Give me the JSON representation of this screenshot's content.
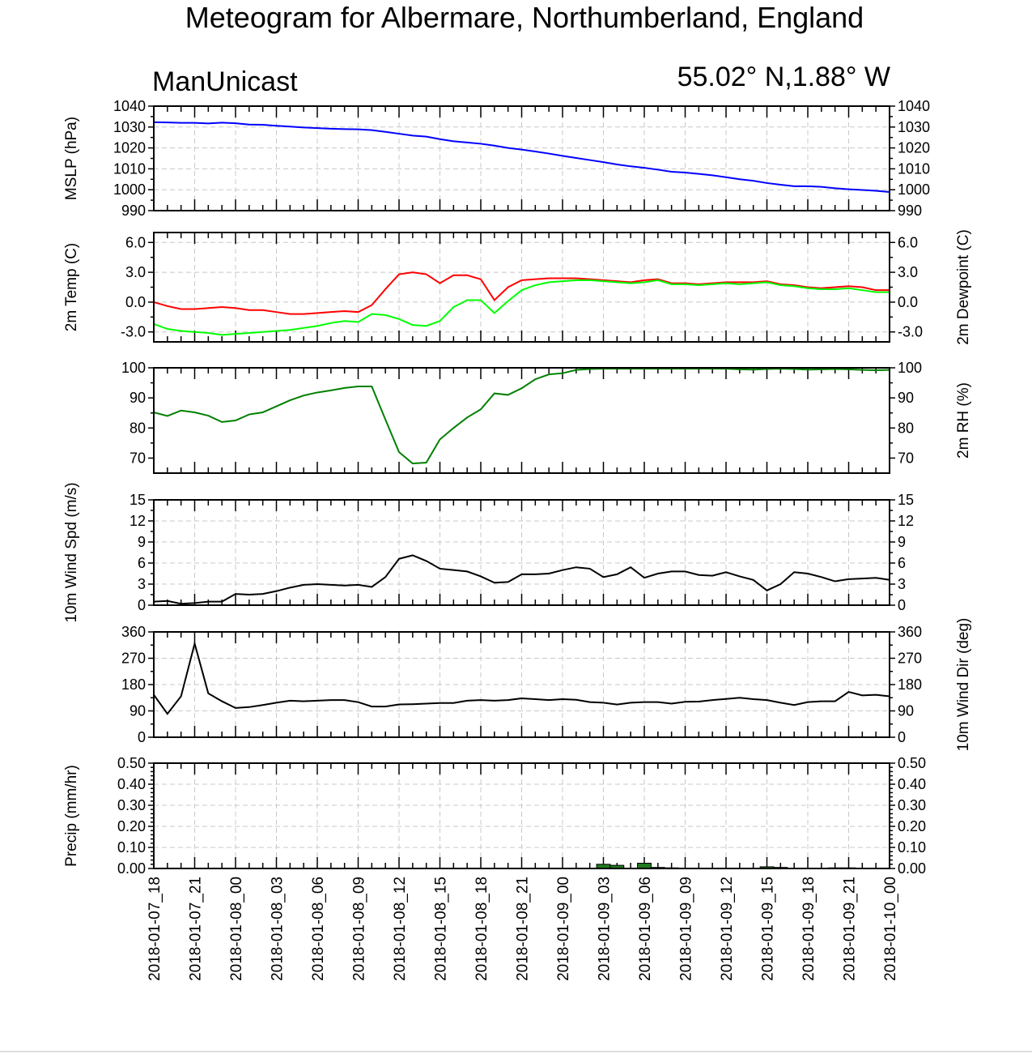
{
  "title": "Meteogram for Albermare, Northumberland, England",
  "left_subtitle": "ManUnicast",
  "right_subtitle": "55.02° N,1.88° W",
  "time_labels": [
    "2018-01-07_18",
    "2018-01-07_21",
    "2018-01-08_00",
    "2018-01-08_03",
    "2018-01-08_06",
    "2018-01-08_09",
    "2018-01-08_12",
    "2018-01-08_15",
    "2018-01-08_18",
    "2018-01-08_21",
    "2018-01-09_00",
    "2018-01-09_03",
    "2018-01-09_06",
    "2018-01-09_09",
    "2018-01-09_12",
    "2018-01-09_15",
    "2018-01-09_18",
    "2018-01-09_21",
    "2018-01-10_00"
  ],
  "colors": {
    "mslp": "#0000ff",
    "temp": "#ff0000",
    "dewpoint": "#00ff00",
    "rh": "#008000",
    "wind": "#000000",
    "precip_fill": "#1f7a1f",
    "grid": "#c8c8c8"
  },
  "chart_data": [
    {
      "type": "line",
      "left_label": "MSLP (hPa)",
      "right_label": "",
      "ylim": [
        990,
        1040
      ],
      "yticks": [
        "990",
        "1000",
        "1010",
        "1020",
        "1030",
        "1040"
      ],
      "ytick_values": [
        990,
        1000,
        1010,
        1020,
        1030,
        1040
      ],
      "grid": true,
      "x_hours": [
        0,
        1,
        2,
        3,
        4,
        5,
        6,
        7,
        8,
        9,
        10,
        11,
        12,
        13,
        14,
        15,
        16,
        17,
        18,
        19,
        20,
        21,
        22,
        23,
        24,
        25,
        26,
        27,
        28,
        29,
        30,
        31,
        32,
        33,
        34,
        35,
        36,
        37,
        38,
        39,
        40,
        41,
        42,
        43,
        44,
        45,
        46,
        47,
        48,
        49,
        50,
        51,
        52,
        53,
        54
      ],
      "series": [
        {
          "color_key": "mslp",
          "values": [
            1032.3,
            1032.2,
            1032.0,
            1032.0,
            1031.7,
            1032.1,
            1031.8,
            1031.2,
            1031.1,
            1030.6,
            1030.2,
            1029.8,
            1029.5,
            1029.2,
            1029.0,
            1028.9,
            1028.5,
            1027.7,
            1026.8,
            1025.9,
            1025.4,
            1024.2,
            1023.2,
            1022.6,
            1022.0,
            1021.1,
            1020.0,
            1019.2,
            1018.3,
            1017.3,
            1016.2,
            1015.2,
            1014.2,
            1013.2,
            1012.1,
            1011.2,
            1010.5,
            1009.6,
            1008.6,
            1008.2,
            1007.6,
            1006.9,
            1006.0,
            1005.0,
            1004.3,
            1003.2,
            1002.4,
            1001.7,
            1001.7,
            1001.4,
            1000.7,
            1000.2,
            999.9,
            999.5,
            998.9
          ]
        }
      ]
    },
    {
      "type": "line",
      "left_label": "2m Temp (C)",
      "right_label": "2m Dewpoint (C)",
      "ylim": [
        -4,
        7
      ],
      "yticks": [
        "-3.0",
        "0.0",
        "3.0",
        "6.0"
      ],
      "ytick_values": [
        -3,
        0,
        3,
        6
      ],
      "grid": true,
      "x_hours": [
        0,
        1,
        2,
        3,
        4,
        5,
        6,
        7,
        8,
        9,
        10,
        11,
        12,
        13,
        14,
        15,
        16,
        17,
        18,
        19,
        20,
        21,
        22,
        23,
        24,
        25,
        26,
        27,
        28,
        29,
        30,
        31,
        32,
        33,
        34,
        35,
        36,
        37,
        38,
        39,
        40,
        41,
        42,
        43,
        44,
        45,
        46,
        47,
        48,
        49,
        50,
        51,
        52,
        53,
        54
      ],
      "series": [
        {
          "color_key": "temp",
          "values": [
            0.0,
            -0.4,
            -0.7,
            -0.7,
            -0.6,
            -0.5,
            -0.6,
            -0.8,
            -0.8,
            -1.0,
            -1.2,
            -1.2,
            -1.1,
            -1.0,
            -0.9,
            -1.0,
            -0.3,
            1.3,
            2.8,
            3.0,
            2.8,
            1.9,
            2.7,
            2.7,
            2.3,
            0.2,
            1.5,
            2.2,
            2.3,
            2.4,
            2.4,
            2.4,
            2.3,
            2.2,
            2.1,
            2.0,
            2.2,
            2.3,
            1.9,
            1.9,
            1.8,
            1.9,
            2.0,
            2.0,
            2.0,
            2.1,
            1.8,
            1.7,
            1.5,
            1.4,
            1.5,
            1.6,
            1.5,
            1.2,
            1.2
          ]
        },
        {
          "color_key": "dewpoint",
          "values": [
            -2.2,
            -2.7,
            -2.9,
            -3.0,
            -3.1,
            -3.3,
            -3.2,
            -3.1,
            -3.0,
            -2.9,
            -2.8,
            -2.6,
            -2.4,
            -2.1,
            -1.9,
            -2.0,
            -1.2,
            -1.3,
            -1.7,
            -2.3,
            -2.4,
            -1.9,
            -0.5,
            0.2,
            0.2,
            -1.1,
            0.1,
            1.2,
            1.7,
            2.0,
            2.1,
            2.2,
            2.2,
            2.1,
            2.0,
            1.9,
            2.0,
            2.2,
            1.8,
            1.8,
            1.7,
            1.8,
            1.9,
            1.8,
            1.9,
            2.0,
            1.7,
            1.6,
            1.4,
            1.3,
            1.3,
            1.4,
            1.2,
            1.0,
            1.0
          ]
        }
      ]
    },
    {
      "type": "line",
      "left_label": "",
      "right_label": "2m RH (%)",
      "ylim": [
        65,
        100
      ],
      "yticks": [
        "70",
        "80",
        "90",
        "100"
      ],
      "ytick_values": [
        70,
        80,
        90,
        100
      ],
      "grid": false,
      "x_hours": [
        0,
        1,
        2,
        3,
        4,
        5,
        6,
        7,
        8,
        9,
        10,
        11,
        12,
        13,
        14,
        15,
        16,
        17,
        18,
        19,
        20,
        21,
        22,
        23,
        24,
        25,
        26,
        27,
        28,
        29,
        30,
        31,
        32,
        33,
        34,
        35,
        36,
        37,
        38,
        39,
        40,
        41,
        42,
        43,
        44,
        45,
        46,
        47,
        48,
        49,
        50,
        51,
        52,
        53,
        54
      ],
      "series": [
        {
          "color_key": "rh",
          "values": [
            85.2,
            84.0,
            85.8,
            85.2,
            84.1,
            82.0,
            82.5,
            84.5,
            85.2,
            87.2,
            89.2,
            90.8,
            91.8,
            92.5,
            93.3,
            93.8,
            93.8,
            82.8,
            72.0,
            68.2,
            68.5,
            76.2,
            80.0,
            83.5,
            86.2,
            91.5,
            91.0,
            93.2,
            96.2,
            97.8,
            98.2,
            99.3,
            99.6,
            99.7,
            99.7,
            99.7,
            99.7,
            99.7,
            99.7,
            99.7,
            99.7,
            99.7,
            99.7,
            99.5,
            99.4,
            99.6,
            99.7,
            99.6,
            99.4,
            99.5,
            99.6,
            99.5,
            99.3,
            99.2,
            99.3
          ]
        }
      ]
    },
    {
      "type": "line",
      "left_label": "10m Wind Spd (m/s)",
      "right_label": "",
      "ylim": [
        0,
        15
      ],
      "yticks": [
        "0",
        "3",
        "6",
        "9",
        "12",
        "15"
      ],
      "ytick_values": [
        0,
        3,
        6,
        9,
        12,
        15
      ],
      "grid": true,
      "x_hours": [
        0,
        1,
        2,
        3,
        4,
        5,
        6,
        7,
        8,
        9,
        10,
        11,
        12,
        13,
        14,
        15,
        16,
        17,
        18,
        19,
        20,
        21,
        22,
        23,
        24,
        25,
        26,
        27,
        28,
        29,
        30,
        31,
        32,
        33,
        34,
        35,
        36,
        37,
        38,
        39,
        40,
        41,
        42,
        43,
        44,
        45,
        46,
        47,
        48,
        49,
        50,
        51,
        52,
        53,
        54
      ],
      "series": [
        {
          "color_key": "wind",
          "values": [
            0.5,
            0.6,
            0.2,
            0.3,
            0.5,
            0.5,
            1.6,
            1.5,
            1.6,
            2.0,
            2.5,
            2.9,
            3.0,
            2.9,
            2.8,
            2.9,
            2.6,
            4.0,
            6.6,
            7.1,
            6.3,
            5.2,
            5.0,
            4.8,
            4.1,
            3.2,
            3.3,
            4.4,
            4.4,
            4.5,
            5.0,
            5.4,
            5.2,
            4.0,
            4.4,
            5.4,
            3.9,
            4.5,
            4.8,
            4.8,
            4.3,
            4.2,
            4.7,
            4.1,
            3.6,
            2.1,
            3.0,
            4.7,
            4.5,
            4.0,
            3.4,
            3.7,
            3.8,
            3.9,
            3.6
          ]
        }
      ]
    },
    {
      "type": "line",
      "left_label": "",
      "right_label": "10m Wind Dir (deg)",
      "ylim": [
        0,
        360
      ],
      "yticks": [
        "0",
        "90",
        "180",
        "270",
        "360"
      ],
      "ytick_values": [
        0,
        90,
        180,
        270,
        360
      ],
      "grid": true,
      "x_hours": [
        0,
        1,
        2,
        3,
        4,
        5,
        6,
        7,
        8,
        9,
        10,
        11,
        12,
        13,
        14,
        15,
        16,
        17,
        18,
        19,
        20,
        21,
        22,
        23,
        24,
        25,
        26,
        27,
        28,
        29,
        30,
        31,
        32,
        33,
        34,
        35,
        36,
        37,
        38,
        39,
        40,
        41,
        42,
        43,
        44,
        45,
        46,
        47,
        48,
        49,
        50,
        51,
        52,
        53,
        54
      ],
      "series": [
        {
          "color_key": "wind",
          "values": [
            145,
            80,
            140,
            320,
            150,
            123,
            100,
            103,
            110,
            118,
            125,
            123,
            125,
            127,
            127,
            120,
            105,
            105,
            112,
            113,
            115,
            117,
            117,
            125,
            127,
            125,
            127,
            133,
            130,
            127,
            130,
            128,
            120,
            118,
            112,
            118,
            120,
            120,
            115,
            121,
            122,
            127,
            131,
            135,
            130,
            127,
            118,
            110,
            120,
            123,
            123,
            155,
            143,
            145,
            140
          ]
        }
      ]
    },
    {
      "type": "bar",
      "left_label": "Precip (mm/hr)",
      "right_label": "",
      "ylim": [
        0,
        0.5
      ],
      "yticks": [
        "0.00",
        "0.10",
        "0.20",
        "0.30",
        "0.40",
        "0.50"
      ],
      "ytick_values": [
        0,
        0.1,
        0.2,
        0.3,
        0.4,
        0.5
      ],
      "grid": true,
      "x_hours": [
        33,
        34,
        36,
        37,
        38,
        45,
        46,
        50,
        51
      ],
      "series": [
        {
          "color_key": "precip_fill",
          "values": [
            0.02,
            0.015,
            0.025,
            0.005,
            0.003,
            0.008,
            0.005,
            0.003,
            0.003
          ]
        }
      ]
    }
  ]
}
